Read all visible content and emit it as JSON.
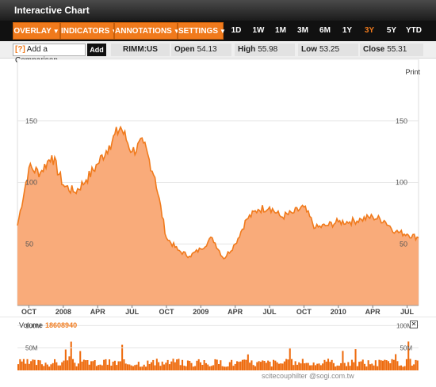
{
  "window": {
    "title": "Interactive Chart"
  },
  "menu": {
    "overlay": "OVERLAY",
    "indicators": "INDICATORS",
    "annotations": "ANNOTATIONS",
    "settings": "SETTINGS",
    "ranges": [
      "1D",
      "1W",
      "1M",
      "3M",
      "6M",
      "1Y",
      "3Y",
      "5Y",
      "YTD"
    ],
    "active_range": "3Y"
  },
  "info": {
    "compare_icon": "[?]",
    "compare_placeholder": "Add a Comparison",
    "add_label": "Add",
    "symbol": "RIMM:US",
    "open_label": "Open",
    "open_value": "54.13",
    "high_label": "High",
    "high_value": "55.98",
    "low_label": "Low",
    "low_value": "53.25",
    "close_label": "Close",
    "close_value": "55.31"
  },
  "print_label": "Print",
  "volume": {
    "label": "Volume",
    "value": "18608940",
    "close_icon": "✕"
  },
  "watermark": "scitecouphilter  @sogi.com.tw",
  "colors": {
    "accent": "#f07a1c",
    "fill": "#f9ab7a",
    "volume": "#ee6b0e"
  },
  "chart_data": [
    {
      "type": "area",
      "x": [
        "2007-09",
        "2007-10",
        "2007-11",
        "2007-12",
        "2008-01",
        "2008-02",
        "2008-03",
        "2008-04",
        "2008-05",
        "2008-06",
        "2008-07",
        "2008-08",
        "2008-09",
        "2008-10",
        "2008-11",
        "2008-12",
        "2009-01",
        "2009-02",
        "2009-03",
        "2009-04",
        "2009-05",
        "2009-06",
        "2009-07",
        "2009-08",
        "2009-09",
        "2009-10",
        "2009-11",
        "2009-12",
        "2010-01",
        "2010-02",
        "2010-03",
        "2010-04",
        "2010-05",
        "2010-06",
        "2010-07",
        "2010-08"
      ],
      "series": [
        {
          "values": [
            65,
            112,
            108,
            122,
            98,
            92,
            102,
            115,
            130,
            145,
            125,
            132,
            104,
            55,
            45,
            40,
            46,
            55,
            38,
            50,
            70,
            78,
            80,
            72,
            75,
            80,
            63,
            65,
            68,
            68,
            70,
            72,
            69,
            60,
            58,
            55
          ]
        }
      ],
      "xticks": [
        "OCT",
        "2008",
        "APR",
        "JUL",
        "OCT",
        "2009",
        "APR",
        "JUL",
        "OCT",
        "2010",
        "APR",
        "JUL"
      ],
      "yticks": [
        "50",
        "100",
        "150"
      ],
      "ylim": [
        0,
        200
      ]
    },
    {
      "type": "bar",
      "yticks": [
        "50M",
        "100M"
      ],
      "ylim": [
        0,
        120
      ],
      "unit": "M"
    }
  ]
}
